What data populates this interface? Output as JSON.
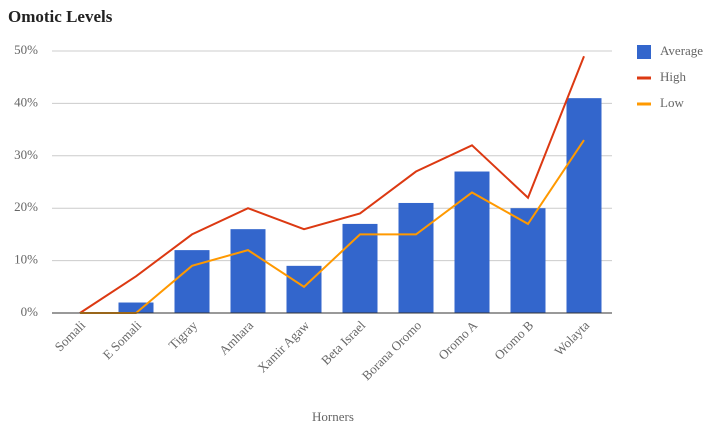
{
  "chart_data": {
    "type": "combo",
    "title": "Omotic Levels",
    "x_label": "Horners",
    "categories": [
      "Somali",
      "E Somali",
      "Tigray",
      "Amhara",
      "Xamir Agaw",
      "Beta Israel",
      "Borana Oromo",
      "Oromo A",
      "Oromo B",
      "Wolayta"
    ],
    "series": [
      {
        "name": "Average",
        "type": "bar",
        "color": "#3366cc",
        "values": [
          0,
          2,
          12,
          16,
          9,
          17,
          21,
          27,
          20,
          41
        ]
      },
      {
        "name": "High",
        "type": "line",
        "color": "#dc3912",
        "values": [
          0,
          7,
          15,
          20,
          16,
          19,
          27,
          32,
          22,
          49
        ]
      },
      {
        "name": "Low",
        "type": "line",
        "color": "#ff9900",
        "values": [
          0,
          0,
          9,
          12,
          5,
          15,
          15,
          23,
          17,
          33
        ]
      }
    ],
    "ylim": [
      0,
      50
    ],
    "yticks": [
      {
        "value": 0,
        "label": "0%"
      },
      {
        "value": 10,
        "label": "10%"
      },
      {
        "value": 20,
        "label": "20%"
      },
      {
        "value": 30,
        "label": "30%"
      },
      {
        "value": 40,
        "label": "40%"
      },
      {
        "value": 50,
        "label": "50%"
      }
    ],
    "grid": true,
    "legend": "right"
  }
}
